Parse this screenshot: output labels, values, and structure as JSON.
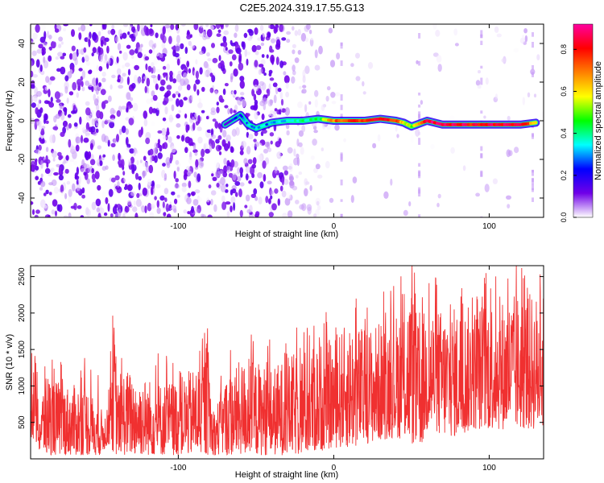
{
  "title": "C2E5.2024.319.17.55.G13",
  "chart_data": [
    {
      "type": "heatmap",
      "title": "C2E5.2024.319.17.55.G13",
      "xlabel": "Height of straight line (km)",
      "ylabel": "Frequency (Hz)",
      "xlim": [
        -195,
        135
      ],
      "ylim": [
        -50,
        50
      ],
      "x_ticks": [
        -100,
        0,
        100
      ],
      "y_ticks": [
        -40,
        -20,
        0,
        20,
        40
      ],
      "colorbar": {
        "label": "Normalized spectral amplitude",
        "range": [
          0.0,
          0.92
        ],
        "ticks": [
          0.0,
          0.2,
          0.4,
          0.6,
          0.8
        ],
        "colormap": [
          "#ffffff",
          "#7000e8",
          "#0000ff",
          "#00ffff",
          "#00ff00",
          "#ffff00",
          "#ff8000",
          "#ff0000",
          "#ff00a0"
        ]
      },
      "signal_track": {
        "x": [
          -70,
          -60,
          -55,
          -50,
          -40,
          -30,
          -20,
          -10,
          0,
          10,
          20,
          30,
          40,
          45,
          50,
          60,
          70,
          80,
          90,
          100,
          110,
          120,
          130
        ],
        "freq": [
          -2,
          3,
          -2,
          -4,
          -1,
          0,
          0,
          1,
          0,
          0,
          0,
          1,
          0,
          -1,
          -3,
          0,
          -2,
          -2,
          -2,
          -2,
          -2,
          -2,
          -1
        ],
        "amplitude": [
          0.15,
          0.25,
          0.3,
          0.3,
          0.3,
          0.35,
          0.4,
          0.45,
          0.7,
          0.75,
          0.8,
          0.85,
          0.75,
          0.6,
          0.5,
          0.85,
          0.85,
          0.85,
          0.8,
          0.85,
          0.85,
          0.85,
          0.6
        ]
      }
    },
    {
      "type": "line",
      "xlabel": "Height of straight line (km)",
      "ylabel": "SNR (10 * v/v)",
      "xlim": [
        -195,
        135
      ],
      "ylim": [
        0,
        2650
      ],
      "x_ticks": [
        -100,
        0,
        100
      ],
      "y_ticks": [
        500,
        1000,
        1500,
        2000,
        2500
      ],
      "color": "#f03030",
      "envelope": {
        "x": [
          -195,
          -192,
          -190,
          -185,
          -180,
          -170,
          -160,
          -150,
          -145,
          -142,
          -140,
          -138,
          -135,
          -125,
          -110,
          -100,
          -90,
          -80,
          -78,
          -70,
          -60,
          -50,
          -40,
          -30,
          -20,
          -10,
          0,
          10,
          20,
          30,
          40,
          50,
          55,
          60,
          70,
          80,
          90,
          100,
          110,
          120,
          135
        ],
        "upper": [
          1000,
          1500,
          700,
          1200,
          1100,
          1000,
          1050,
          700,
          600,
          2100,
          1500,
          900,
          1250,
          1150,
          1050,
          1100,
          1250,
          1550,
          600,
          1100,
          1350,
          1350,
          1250,
          1400,
          1500,
          1600,
          1650,
          1900,
          1800,
          1900,
          2000,
          2400,
          1800,
          2200,
          2050,
          2100,
          2100,
          2250,
          2200,
          2300,
          2250
        ],
        "lower": [
          250,
          250,
          100,
          50,
          50,
          50,
          50,
          50,
          200,
          100,
          50,
          100,
          50,
          50,
          50,
          50,
          50,
          50,
          50,
          50,
          50,
          50,
          50,
          50,
          50,
          100,
          150,
          150,
          200,
          250,
          300,
          200,
          100,
          350,
          300,
          300,
          400,
          400,
          400,
          400,
          400
        ]
      }
    }
  ]
}
